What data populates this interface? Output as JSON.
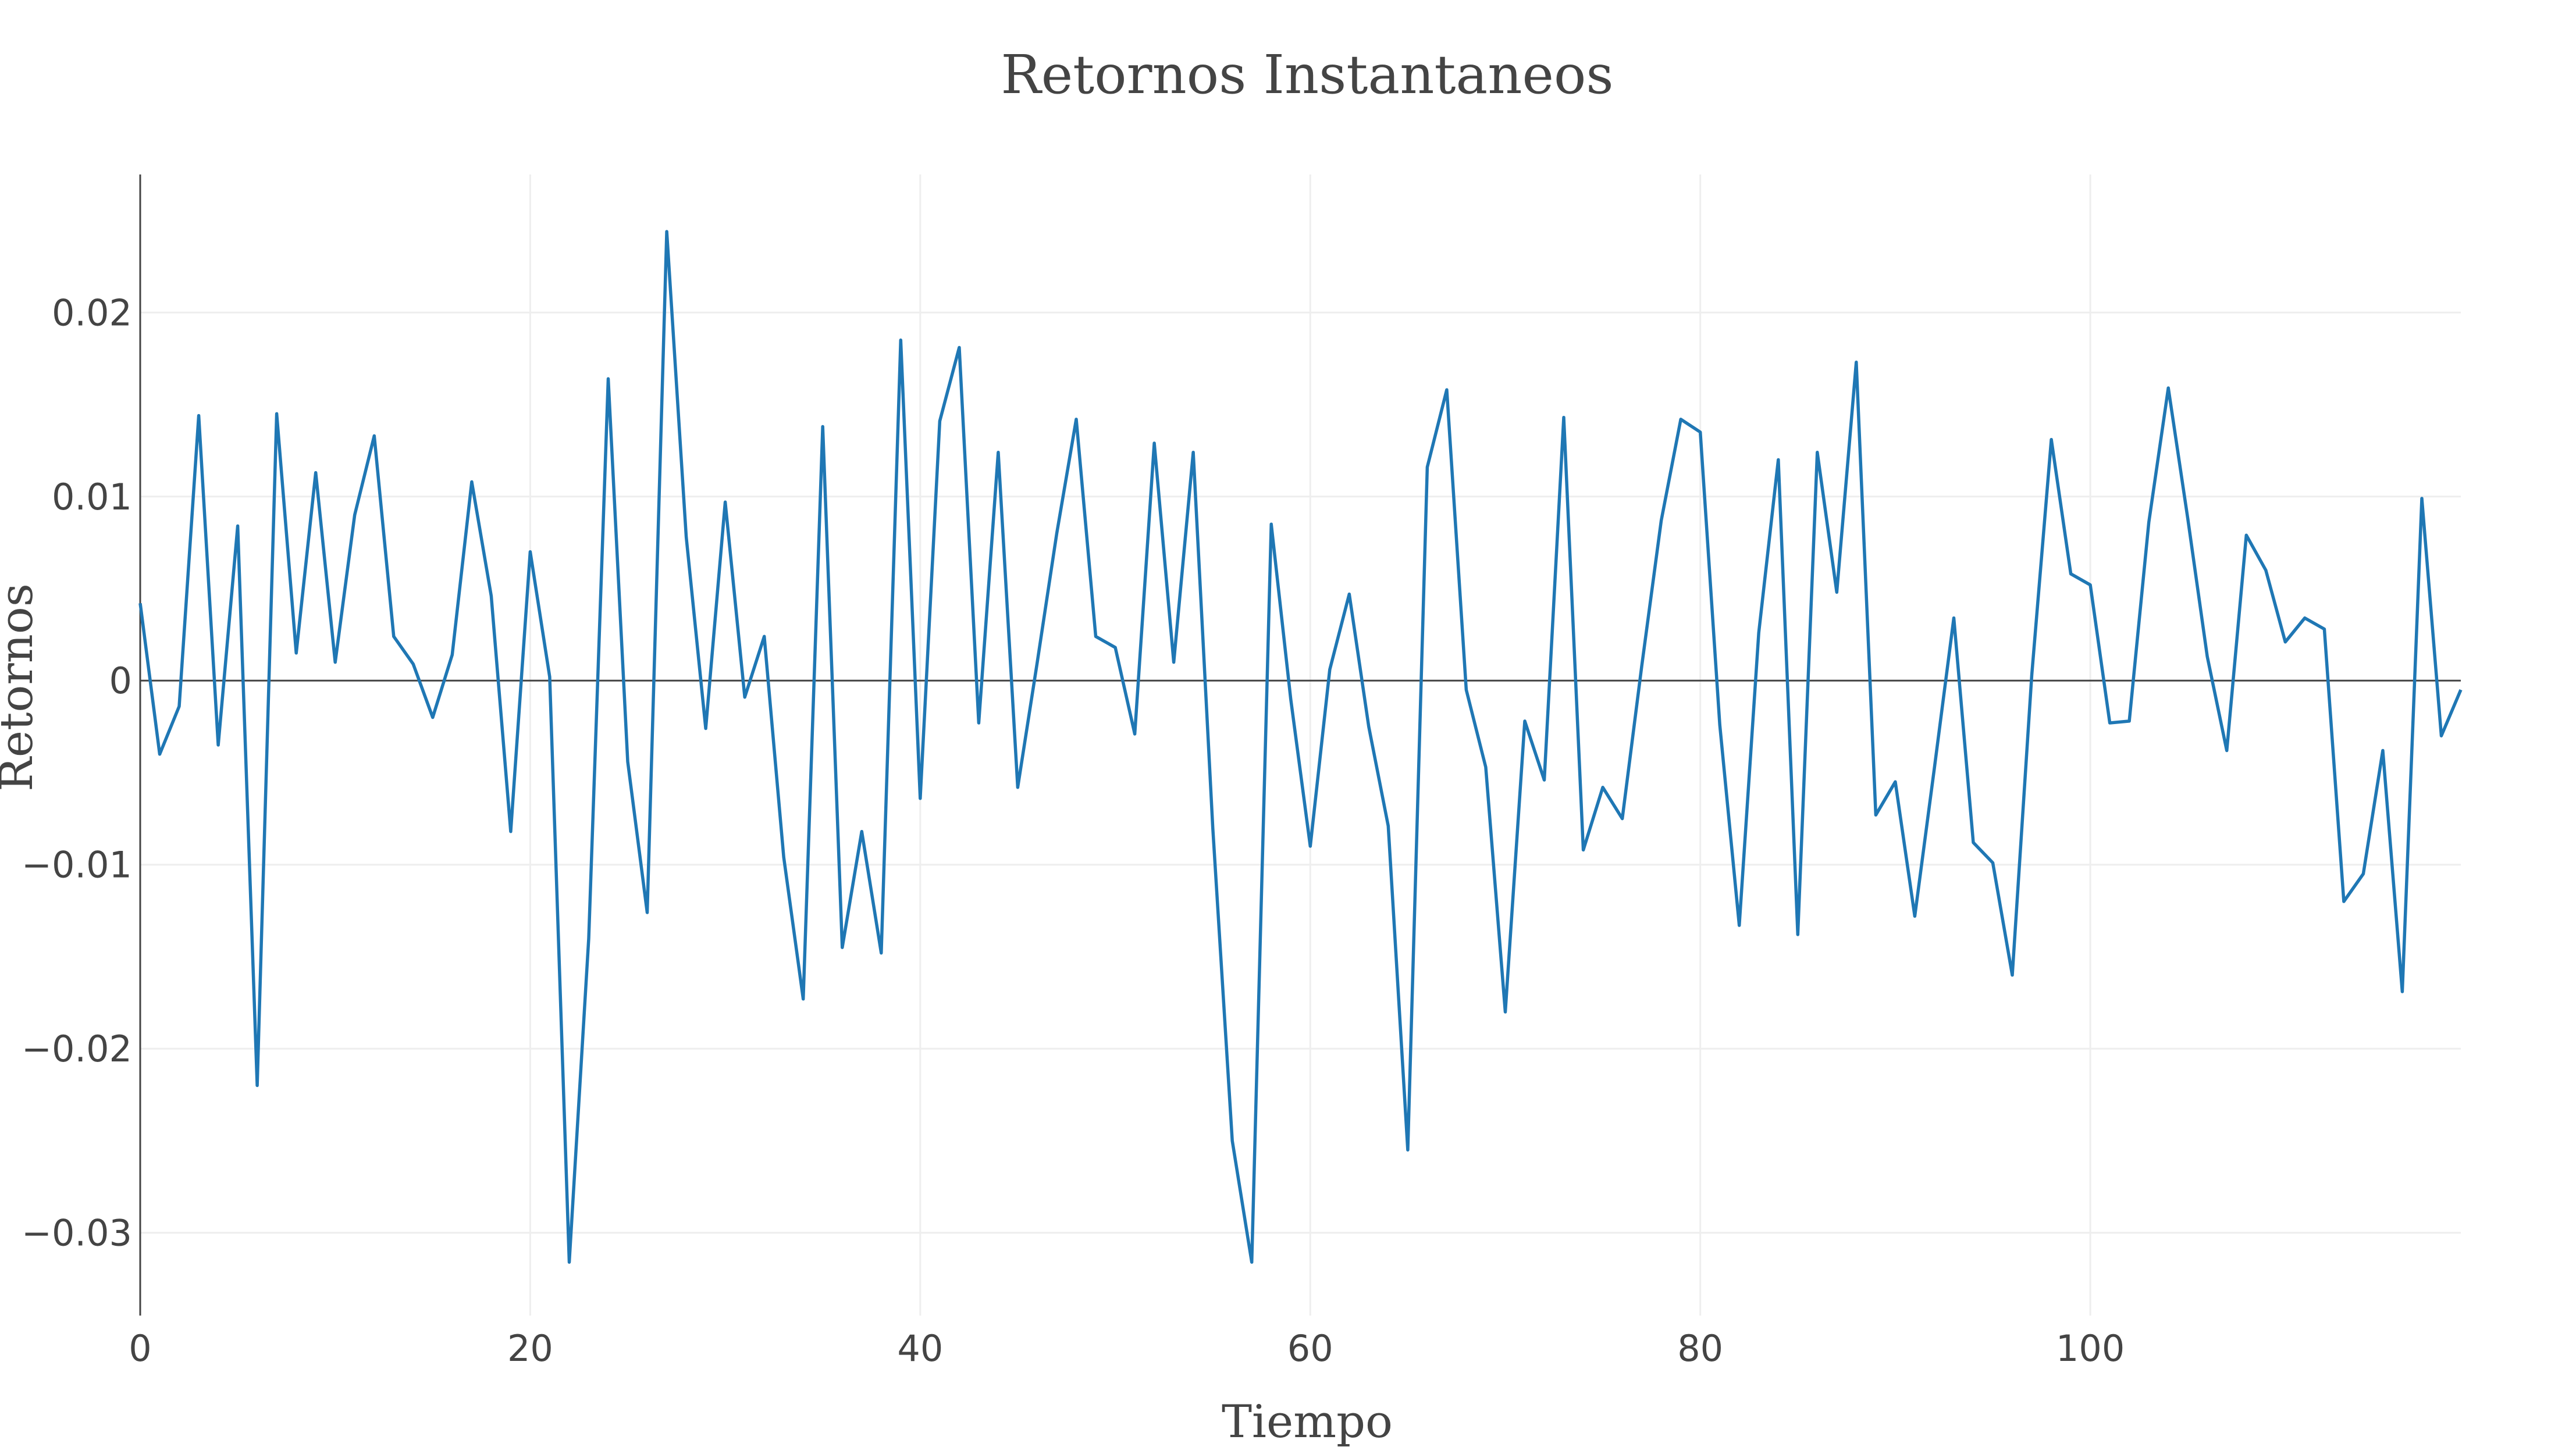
{
  "chart_data": {
    "type": "line",
    "title": "Retornos Instantaneos",
    "xlabel": "Tiempo",
    "ylabel": "Retornos",
    "xlim": [
      0,
      119
    ],
    "ylim": [
      -0.0345,
      0.0275
    ],
    "xticks": [
      0,
      20,
      40,
      60,
      80,
      100
    ],
    "xtick_labels": [
      "0",
      "20",
      "40",
      "60",
      "80",
      "100"
    ],
    "yticks": [
      -0.03,
      -0.02,
      -0.01,
      0,
      0.01,
      0.02
    ],
    "ytick_labels": [
      "−0.03",
      "−0.02",
      "−0.01",
      "0",
      "0.01",
      "0.02"
    ],
    "grid": true,
    "line_color": "#1f77b4",
    "series": [
      {
        "x": [
          0,
          1,
          2,
          3,
          4,
          5,
          6,
          7,
          8,
          9,
          10,
          11,
          12,
          13,
          14,
          15,
          16,
          17,
          18,
          19,
          20,
          21,
          22,
          23,
          24,
          25,
          26,
          27,
          28,
          29,
          30,
          31,
          32,
          33,
          34,
          35,
          36,
          37,
          38,
          39,
          40,
          41,
          42,
          43,
          44,
          45,
          46,
          47,
          48,
          49,
          50,
          51,
          52,
          53,
          54,
          55,
          56,
          57,
          58,
          59,
          60,
          61,
          62,
          63,
          64,
          65,
          66,
          67,
          68,
          69,
          70,
          71,
          72,
          73,
          74,
          75,
          76,
          77,
          78,
          79,
          80,
          81,
          82,
          83,
          84,
          85,
          86,
          87,
          88,
          89,
          90,
          91,
          92,
          93,
          94,
          95,
          96,
          97,
          98,
          99,
          100,
          101,
          102,
          103,
          104,
          105,
          106,
          107,
          108,
          109,
          110,
          111,
          112,
          113,
          114,
          115,
          116,
          117,
          118,
          119
        ],
        "values": [
          0.0042,
          -0.004,
          -0.0014,
          0.0144,
          -0.0035,
          0.0084,
          -0.022,
          0.0145,
          0.0015,
          0.0113,
          0.001,
          0.009,
          0.0133,
          0.0024,
          0.0009,
          -0.002,
          0.0014,
          0.0108,
          0.0046,
          -0.0082,
          0.007,
          0.0002,
          -0.0316,
          -0.014,
          0.0164,
          -0.0044,
          -0.0126,
          0.0244,
          0.0078,
          -0.0026,
          0.0097,
          -0.0009,
          0.0024,
          -0.0096,
          -0.0173,
          0.0138,
          -0.0145,
          -0.0082,
          -0.0148,
          0.0185,
          -0.0064,
          0.0141,
          0.0181,
          -0.0023,
          0.0124,
          -0.0058,
          0.001,
          0.008,
          0.0142,
          0.0024,
          0.0018,
          -0.0029,
          0.0129,
          0.001,
          0.0124,
          -0.008,
          -0.025,
          -0.0316,
          0.0085,
          -0.001,
          -0.009,
          0.0006,
          0.0047,
          -0.0025,
          -0.0079,
          -0.0255,
          0.0116,
          0.0158,
          -0.0005,
          -0.0047,
          -0.018,
          -0.0022,
          -0.0054,
          0.0143,
          -0.0092,
          -0.0058,
          -0.0075,
          0.0008,
          0.0087,
          0.0142,
          0.0135,
          -0.0024,
          -0.0133,
          0.0026,
          0.012,
          -0.0138,
          0.0124,
          0.0048,
          0.0173,
          -0.0073,
          -0.0055,
          -0.0128,
          -0.0048,
          0.0034,
          -0.0088,
          -0.0099,
          -0.016,
          0.0003,
          0.0131,
          0.0058,
          0.0052,
          -0.0023,
          -0.0022,
          0.0086,
          0.0159,
          0.0088,
          0.0013,
          -0.0038,
          0.0079,
          0.006,
          0.0021,
          0.0034,
          0.0028,
          -0.012,
          -0.0105,
          -0.0038,
          -0.0169,
          0.0099,
          -0.003,
          -0.0005
        ]
      }
    ]
  }
}
